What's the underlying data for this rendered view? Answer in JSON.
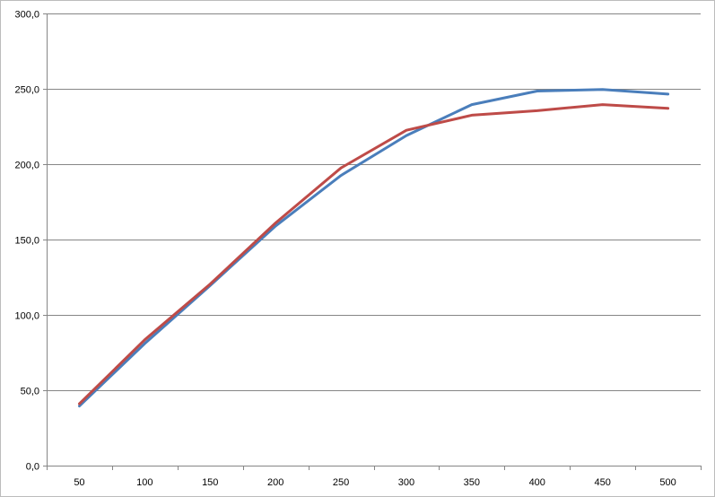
{
  "chart_data": {
    "type": "line",
    "title": "",
    "xlabel": "",
    "ylabel": "",
    "categories": [
      "50",
      "100",
      "150",
      "200",
      "250",
      "300",
      "350",
      "400",
      "450",
      "500"
    ],
    "series": [
      {
        "color": "#4a7ebb",
        "values": [
          39.5,
          81.0,
          119.5,
          159.0,
          192.5,
          219.0,
          239.5,
          248.5,
          249.5,
          246.5
        ]
      },
      {
        "color": "#be4b48",
        "values": [
          41.0,
          83.5,
          120.5,
          161.0,
          197.5,
          222.5,
          232.5,
          235.5,
          239.5,
          237.0
        ]
      }
    ],
    "yticks": [
      "0,0",
      "50,0",
      "100,0",
      "150,0",
      "200,0",
      "250,0",
      "300,0"
    ],
    "ylim": [
      0,
      300
    ],
    "grid": true,
    "legend": "none"
  }
}
